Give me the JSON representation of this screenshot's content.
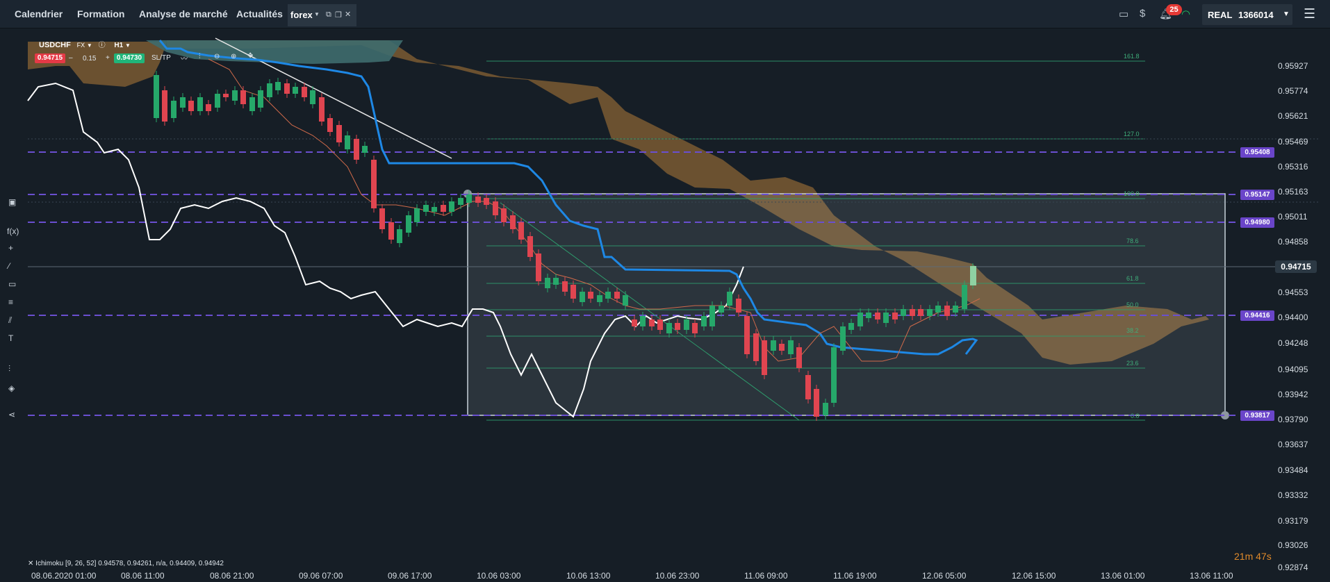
{
  "nav": {
    "tabs": [
      "Calendrier",
      "Formation",
      "Analyse de marché",
      "Actualités"
    ],
    "active_tab": "forex",
    "notifications": "25",
    "account_type": "REAL",
    "account_number": "1366014"
  },
  "instrument": {
    "symbol": "USDCHF",
    "market": "FX",
    "timeframe": "H1",
    "sell_price": "0.94715",
    "buy_price": "0.94730",
    "volume": "0.15",
    "minus": "–",
    "plus": "+",
    "sltp": "SL/TP"
  },
  "price_axis": [
    "0.95927",
    "0.95774",
    "0.95621",
    "0.95469",
    "0.95316",
    "0.95163",
    "0.95011",
    "0.94858",
    "0.94553",
    "0.94400",
    "0.94248",
    "0.94095",
    "0.93942",
    "0.93790",
    "0.93637",
    "0.93484",
    "0.93332",
    "0.93179",
    "0.93026",
    "0.92874"
  ],
  "price_badges": [
    "0.95408",
    "0.95147",
    "0.94980",
    "0.94416",
    "0.93817"
  ],
  "current_price": "0.94715",
  "time_axis": [
    "08.06.2020 01:00",
    "08.06 11:00",
    "08.06 21:00",
    "09.06 07:00",
    "09.06 17:00",
    "10.06 03:00",
    "10.06 13:00",
    "10.06 23:00",
    "11.06 09:00",
    "11.06 19:00",
    "12.06 05:00",
    "12.06 15:00",
    "13.06 01:00",
    "13.06 11:00"
  ],
  "fib_levels": [
    "161.8",
    "127.0",
    "100.0",
    "78.6",
    "61.8",
    "50.0",
    "38.2",
    "23.6",
    "0.0"
  ],
  "indicator": "Ichimoku [9, 26, 52] 0.94578, 0.94261, n/a, 0.94409, 0.94942",
  "timer": "21m 47s",
  "colors": {
    "bull": "#26a86a",
    "bear": "#e04550",
    "cloud": "#7a5a33",
    "kijun": "#1e88e5",
    "fib": "#2e9b6c",
    "hline": "#6a4fd0"
  }
}
